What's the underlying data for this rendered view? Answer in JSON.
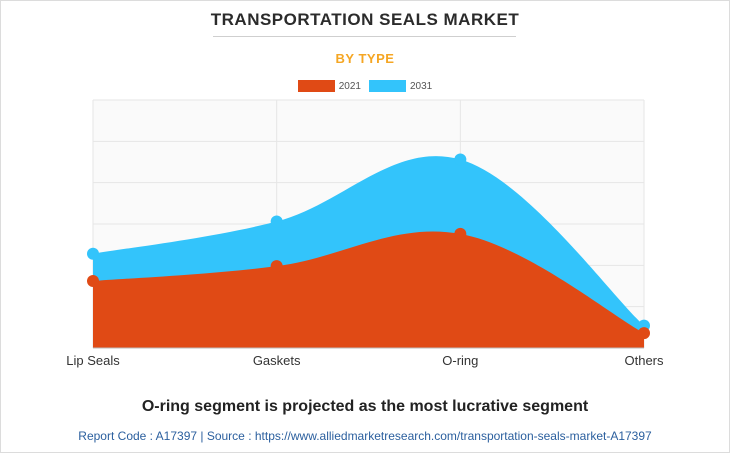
{
  "header": {
    "title": "TRANSPORTATION SEALS MARKET",
    "subtitle": "BY TYPE"
  },
  "chart_data": {
    "type": "area",
    "categories": [
      "Lip Seals",
      "Gaskets",
      "O-ring",
      "Others"
    ],
    "series": [
      {
        "name": "2021",
        "values": [
          27,
          33,
          46,
          6
        ],
        "color": "#e04a15"
      },
      {
        "name": "2031",
        "values": [
          38,
          51,
          76,
          9
        ],
        "color": "#33c4fb"
      }
    ],
    "ylim": [
      0,
      100
    ],
    "grid": true,
    "legend_position": "top-center",
    "xlabel": "",
    "ylabel": ""
  },
  "footer": {
    "caption": "O-ring segment is projected as the most lucrative segment",
    "source": "Report Code : A17397  |  Source : https://www.alliedmarketresearch.com/transportation-seals-market-A17397"
  }
}
